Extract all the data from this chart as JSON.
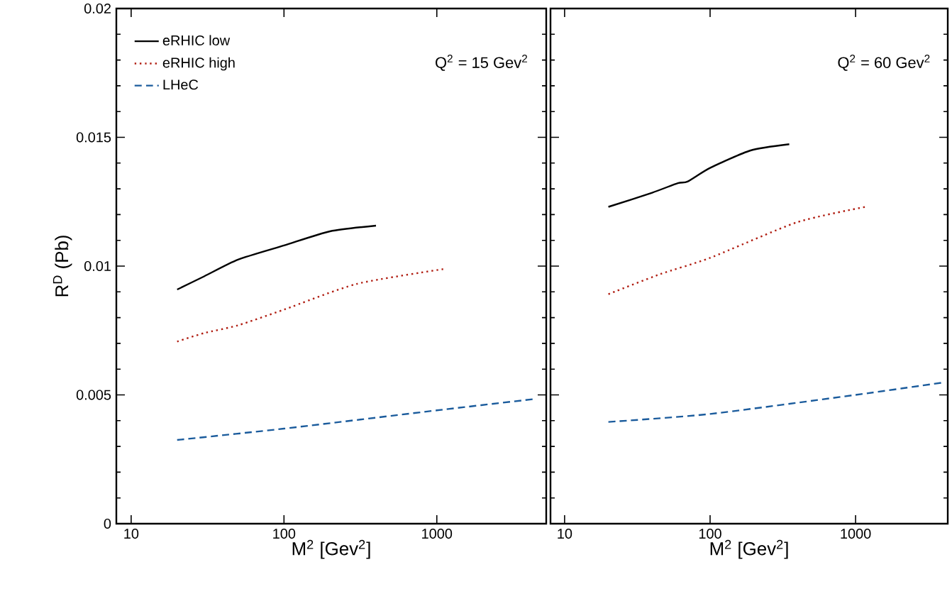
{
  "chart_data": [
    {
      "type": "line",
      "log": "x",
      "xlabel": "M$^{2}$ [Gev$^{2}$]",
      "ylabel": "R$^{D}$ (Pb)",
      "annotations": [
        "Q$^{2}$ = 15 Gev$^{2}$"
      ],
      "xlim": [
        8,
        5200
      ],
      "ylim": [
        0,
        0.02
      ],
      "xticks": [
        10,
        100,
        1000
      ],
      "yticks": [
        0,
        0.005,
        0.01,
        0.015,
        0.02
      ],
      "legend": "top left",
      "grid": false,
      "series": [
        {
          "name": "eRHIC low",
          "color": "#000000",
          "line_style": "solid",
          "x": [
            20,
            30,
            50,
            100,
            200,
            400
          ],
          "values": [
            0.00909,
            0.0096,
            0.01025,
            0.0108,
            0.01135,
            0.01157
          ]
        },
        {
          "name": "eRHIC high",
          "color": "#b01c10",
          "line_style": "dotted",
          "x": [
            20,
            30,
            50,
            100,
            300,
            1150
          ],
          "values": [
            0.00707,
            0.0074,
            0.0077,
            0.00831,
            0.00931,
            0.0099
          ]
        },
        {
          "name": "LHeC",
          "color": "#1a5b9c",
          "line_style": "dashed",
          "x": [
            20,
            100,
            1000,
            4500
          ],
          "values": [
            0.00325,
            0.00369,
            0.0044,
            0.00485
          ]
        }
      ]
    },
    {
      "type": "line",
      "log": "x",
      "xlabel": "M$^{2}$ [Gev$^{2}$]",
      "annotations": [
        "Q$^{2}$ = 60 Gev$^{2}$"
      ],
      "xlim": [
        8,
        4300
      ],
      "ylim": [
        0,
        0.02
      ],
      "xticks": [
        10,
        100,
        1000
      ],
      "yticks": [
        0,
        0.005,
        0.01,
        0.015,
        0.02
      ],
      "tick_labels": "x",
      "grid": false,
      "series": [
        {
          "color": "#000000",
          "line_style": "solid",
          "x": [
            20,
            40,
            60,
            70,
            100,
            190,
            350
          ],
          "values": [
            0.0123,
            0.01285,
            0.01322,
            0.01328,
            0.01381,
            0.01449,
            0.01473
          ]
        },
        {
          "color": "#b01c10",
          "line_style": "dotted",
          "x": [
            20,
            45,
            100,
            395,
            1170
          ],
          "values": [
            0.00891,
            0.00968,
            0.01032,
            0.0117,
            0.0123
          ]
        },
        {
          "color": "#1a5b9c",
          "line_style": "dashed",
          "x": [
            20,
            100,
            1000,
            4000
          ],
          "values": [
            0.00395,
            0.00426,
            0.005,
            0.00548
          ]
        }
      ]
    }
  ]
}
